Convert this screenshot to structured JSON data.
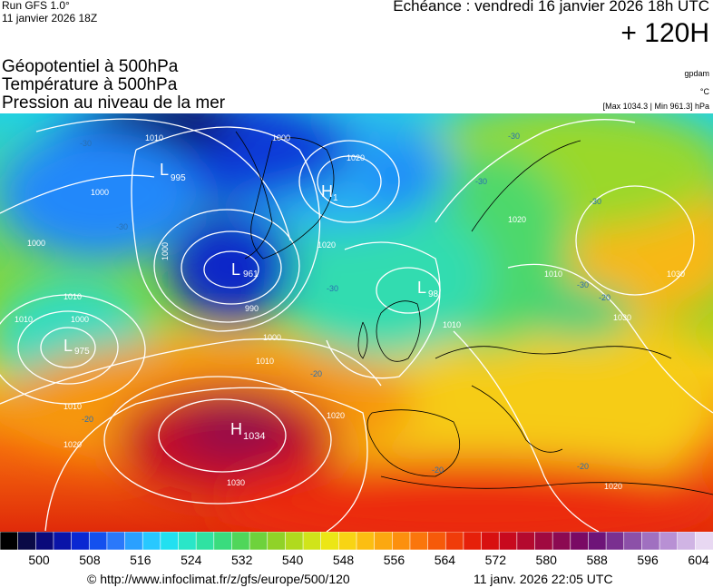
{
  "header": {
    "run_line": "Run GFS 1.0°",
    "run_date": "11 janvier 2026 18Z",
    "valid_time": "Echéance : vendredi 16 janvier 2026 18h UTC",
    "lead_time": "+ 120H"
  },
  "titles": [
    "Géopotentiel à 500hPa",
    "Température à 500hPa",
    "Pression au niveau de la mer"
  ],
  "units": [
    "gpdam",
    "°C",
    "[Max 1034.3 | Min 961.3] hPa"
  ],
  "pressure_centers": [
    {
      "type": "L",
      "value": "995"
    },
    {
      "type": "H",
      "value": "1"
    },
    {
      "type": "L",
      "value": "961"
    },
    {
      "type": "L",
      "value": "98"
    },
    {
      "type": "L",
      "value": "975"
    },
    {
      "type": "H",
      "value": "1034"
    }
  ],
  "isobar_labels": [
    "1010",
    "1000",
    "1000",
    "1020",
    "1000",
    "990",
    "1000",
    "1010",
    "1000",
    "1010",
    "1000",
    "1010",
    "1010",
    "1020",
    "1030",
    "1020",
    "1010",
    "1020",
    "1010",
    "1030",
    "1030",
    "1020",
    "1020"
  ],
  "temperature_labels": [
    "-30",
    "-30",
    "-30",
    "-30",
    "-30",
    "-30",
    "-30",
    "-20",
    "-20",
    "-20",
    "-20",
    "-20"
  ],
  "scale": {
    "colors": [
      "#000000",
      "#0a0a46",
      "#0a0a7a",
      "#0a14a8",
      "#0a28d2",
      "#1450ee",
      "#2a78fa",
      "#2aa0ff",
      "#28c8ff",
      "#22e0f0",
      "#2ae6c8",
      "#30e2a2",
      "#3adc7e",
      "#50d65a",
      "#6ed23c",
      "#90d228",
      "#b0da1e",
      "#d0e41a",
      "#ece616",
      "#f8d414",
      "#fcbe12",
      "#fca810",
      "#fc900e",
      "#fa760c",
      "#f65a0a",
      "#f03c0a",
      "#e6200a",
      "#d81010",
      "#c80a1e",
      "#b40a2e",
      "#a00a40",
      "#8c0a52",
      "#7a0a64",
      "#6e1478",
      "#7a3090",
      "#8c50a8",
      "#a070c0",
      "#b890d4",
      "#d0b4e4",
      "#e8d8f2"
    ],
    "tick_labels": [
      "500",
      "508",
      "516",
      "524",
      "532",
      "540",
      "548",
      "556",
      "564",
      "572",
      "580",
      "588",
      "596",
      "604"
    ]
  },
  "footer": {
    "copyright": "© http://www.infoclimat.fr/z/gfs/europe/500/120",
    "stamp": "11 janv. 2026 22:05 UTC"
  }
}
